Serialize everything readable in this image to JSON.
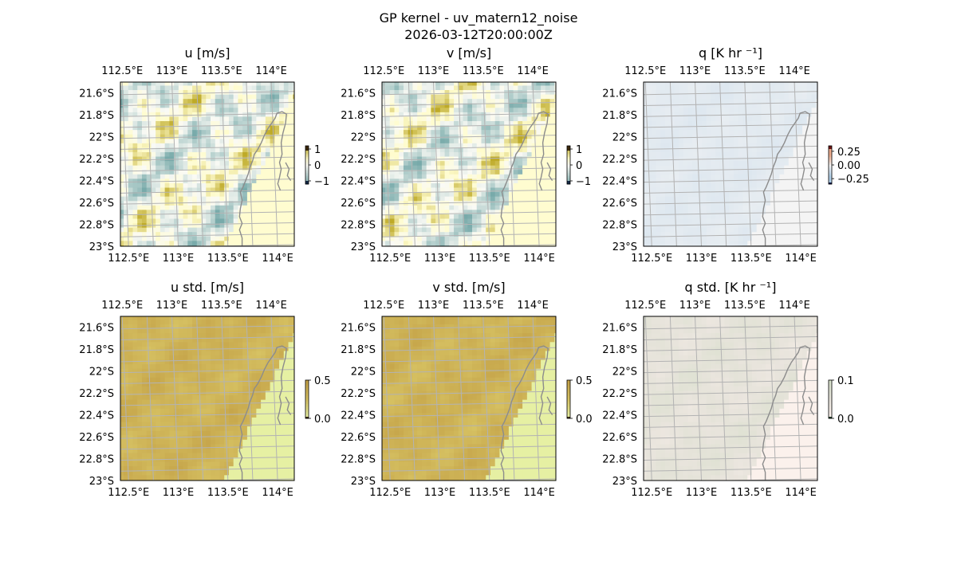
{
  "figure": {
    "title_line1": "GP kernel - uv_matern12_noise",
    "title_line2": "2026-03-12T20:00:00Z"
  },
  "chart_data": [
    {
      "type": "heatmap",
      "title": "u [m/s]",
      "xticks": [
        "112.5°E",
        "113°E",
        "113.5°E",
        "114°E"
      ],
      "yticks": [
        "21.6°S",
        "21.8°S",
        "22°S",
        "22.2°S",
        "22.4°S",
        "22.6°S",
        "22.8°S",
        "23°S"
      ],
      "xtick_values": [
        112.5,
        113.0,
        113.5,
        114.0
      ],
      "ytick_values": [
        -21.6,
        -21.8,
        -22.0,
        -22.2,
        -22.4,
        -22.6,
        -22.8,
        -23.0
      ],
      "xlim": [
        112.45,
        114.2
      ],
      "ylim": [
        -23.0,
        -21.5
      ],
      "grid": true,
      "colormap": "diverging teal-white-olive",
      "colorbar": {
        "ticks": [
          "1",
          "0",
          "−1"
        ],
        "tick_values": [
          1,
          0,
          -1
        ],
        "range": [
          -1.2,
          1.2
        ]
      },
      "field_kind": "signed"
    },
    {
      "type": "heatmap",
      "title": "v [m/s]",
      "xticks": [
        "112.5°E",
        "113°E",
        "113.5°E",
        "114°E"
      ],
      "yticks": [
        "21.6°S",
        "21.8°S",
        "22°S",
        "22.2°S",
        "22.4°S",
        "22.6°S",
        "22.8°S",
        "23°S"
      ],
      "xtick_values": [
        112.5,
        113.0,
        113.5,
        114.0
      ],
      "ytick_values": [
        -21.6,
        -21.8,
        -22.0,
        -22.2,
        -22.4,
        -22.6,
        -22.8,
        -23.0
      ],
      "xlim": [
        112.45,
        114.2
      ],
      "ylim": [
        -23.0,
        -21.5
      ],
      "grid": true,
      "colormap": "diverging teal-white-olive",
      "colorbar": {
        "ticks": [
          "1",
          "0",
          "−1"
        ],
        "tick_values": [
          1,
          0,
          -1
        ],
        "range": [
          -1.2,
          1.2
        ]
      },
      "field_kind": "signed"
    },
    {
      "type": "heatmap",
      "title": "q [K hr ⁻¹]",
      "xticks": [
        "112.5°E",
        "113°E",
        "113.5°E",
        "114°E"
      ],
      "yticks": [
        "21.6°S",
        "21.8°S",
        "22°S",
        "22.2°S",
        "22.4°S",
        "22.6°S",
        "22.8°S",
        "23°S"
      ],
      "xtick_values": [
        112.5,
        113.0,
        113.5,
        114.0
      ],
      "ytick_values": [
        -21.6,
        -21.8,
        -22.0,
        -22.2,
        -22.4,
        -22.6,
        -22.8,
        -23.0
      ],
      "xlim": [
        112.45,
        114.2
      ],
      "ylim": [
        -23.0,
        -21.5
      ],
      "grid": true,
      "colormap": "diverging blue-white-red",
      "colorbar": {
        "ticks": [
          "0.25",
          "0.00",
          "−0.25"
        ],
        "tick_values": [
          0.25,
          0.0,
          -0.25
        ],
        "range": [
          -0.35,
          0.35
        ]
      },
      "field_kind": "q"
    },
    {
      "type": "heatmap",
      "title": "u std. [m/s]",
      "xticks": [
        "112.5°E",
        "113°E",
        "113.5°E",
        "114°E"
      ],
      "yticks": [
        "21.6°S",
        "21.8°S",
        "22°S",
        "22.2°S",
        "22.4°S",
        "22.6°S",
        "22.8°S",
        "23°S"
      ],
      "xtick_values": [
        112.5,
        113.0,
        113.5,
        114.0
      ],
      "ytick_values": [
        -21.6,
        -21.8,
        -22.0,
        -22.2,
        -22.4,
        -22.6,
        -22.8,
        -23.0
      ],
      "xlim": [
        112.45,
        114.2
      ],
      "ylim": [
        -23.0,
        -21.5
      ],
      "grid": true,
      "colormap": "sequential yellow-olive",
      "colorbar": {
        "ticks": [
          "0.5",
          "0.0"
        ],
        "tick_values": [
          0.5,
          0.0
        ],
        "range": [
          0.0,
          0.5
        ]
      },
      "field_kind": "std"
    },
    {
      "type": "heatmap",
      "title": "v std. [m/s]",
      "xticks": [
        "112.5°E",
        "113°E",
        "113.5°E",
        "114°E"
      ],
      "yticks": [
        "21.6°S",
        "21.8°S",
        "22°S",
        "22.2°S",
        "22.4°S",
        "22.6°S",
        "22.8°S",
        "23°S"
      ],
      "xtick_values": [
        112.5,
        113.0,
        113.5,
        114.0
      ],
      "ytick_values": [
        -21.6,
        -21.8,
        -22.0,
        -22.2,
        -22.4,
        -22.6,
        -22.8,
        -23.0
      ],
      "xlim": [
        112.45,
        114.2
      ],
      "ylim": [
        -23.0,
        -21.5
      ],
      "grid": true,
      "colormap": "sequential yellow-olive",
      "colorbar": {
        "ticks": [
          "0.5",
          "0.0"
        ],
        "tick_values": [
          0.5,
          0.0
        ],
        "range": [
          0.0,
          0.5
        ]
      },
      "field_kind": "std"
    },
    {
      "type": "heatmap",
      "title": "q std. [K hr ⁻¹]",
      "xticks": [
        "112.5°E",
        "113°E",
        "113.5°E",
        "114°E"
      ],
      "yticks": [
        "21.6°S",
        "21.8°S",
        "22°S",
        "22.2°S",
        "22.4°S",
        "22.6°S",
        "22.8°S",
        "23°S"
      ],
      "xtick_values": [
        112.5,
        113.0,
        113.5,
        114.0
      ],
      "ytick_values": [
        -21.6,
        -21.8,
        -22.0,
        -22.2,
        -22.4,
        -22.6,
        -22.8,
        -23.0
      ],
      "xlim": [
        112.45,
        114.2
      ],
      "ylim": [
        -23.0,
        -21.5
      ],
      "grid": true,
      "colormap": "sequential pink-green",
      "colorbar": {
        "ticks": [
          "0.1",
          "0.0"
        ],
        "tick_values": [
          0.1,
          0.0
        ],
        "range": [
          0.0,
          0.1
        ]
      },
      "field_kind": "qstd"
    }
  ],
  "colors": {
    "ocean_edge": "#a1b6d9",
    "coastline": "#8c8c8c",
    "gridline": "#b3b3b3"
  }
}
